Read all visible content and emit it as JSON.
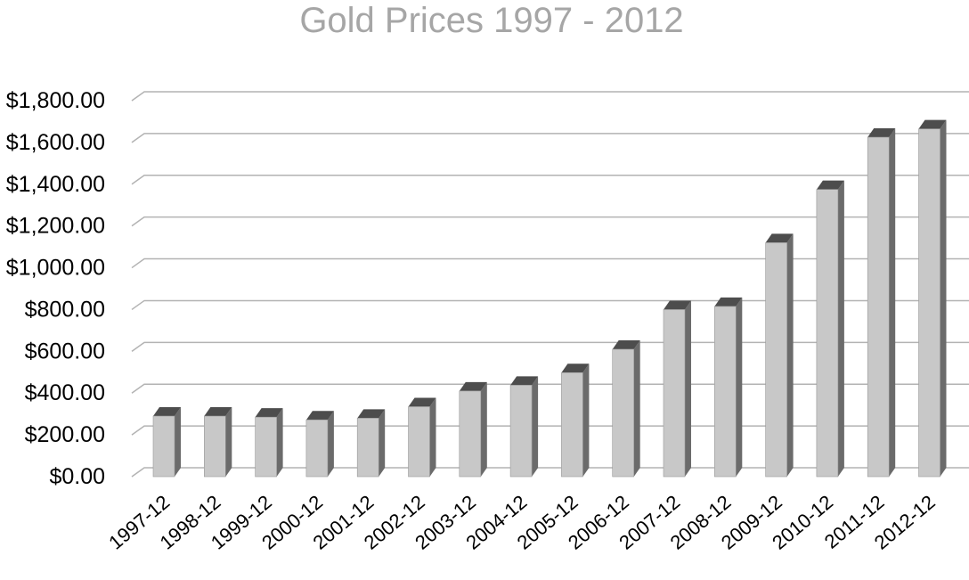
{
  "chart_data": {
    "type": "bar",
    "title": "Gold Prices 1997 - 2012",
    "xlabel": "",
    "ylabel": "",
    "categories": [
      "1997-12",
      "1998-12",
      "1999-12",
      "2000-12",
      "2001-12",
      "2002-12",
      "2003-12",
      "2004-12",
      "2005-12",
      "2006-12",
      "2007-12",
      "2008-12",
      "2009-12",
      "2010-12",
      "2011-12",
      "2012-12"
    ],
    "values": [
      290,
      290,
      285,
      272,
      280,
      335,
      410,
      438,
      498,
      610,
      800,
      815,
      1120,
      1375,
      1625,
      1665
    ],
    "ylim": [
      0,
      1800
    ],
    "y_ticks": [
      0,
      200,
      400,
      600,
      800,
      1000,
      1200,
      1400,
      1600,
      1800
    ],
    "y_tick_labels": [
      "$0.00",
      "$200.00",
      "$400.00",
      "$600.00",
      "$800.00",
      "$1,000.00",
      "$1,200.00",
      "$1,400.00",
      "$1,600.00",
      "$1,800.00"
    ],
    "grid": true,
    "legend": "none",
    "style": "3d-column",
    "colors": {
      "bar_front": "#c8c8c8",
      "bar_side": "#6b6b6b",
      "bar_top": "#4d4d4d",
      "gridline": "#b3b3b3",
      "title": "#a6a6a6"
    }
  }
}
